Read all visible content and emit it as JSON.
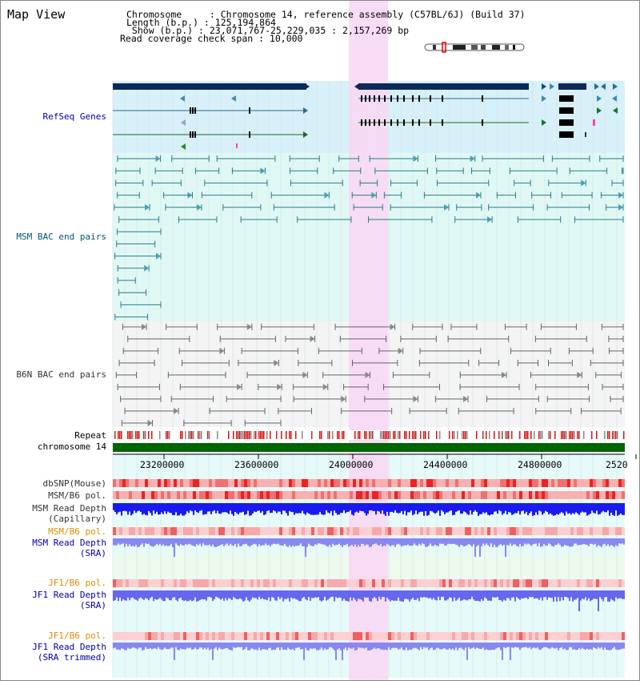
{
  "header": {
    "title": "Map View",
    "info_lines": [
      "Chromosome     : Chromosome 14, reference assembly (C57BL/6J) (Build 37)",
      "Length (b.p.) : 125,194,864",
      " Show (b.p.) : 23,071,767-25,229,035 : 2,157,269 bp",
      "Read coverage check span : 10,000"
    ]
  },
  "tracks": {
    "refseq_label": "RefSeq Genes",
    "msm_bac_label": "MSM BAC end pairs",
    "b6n_bac_label": "B6N BAC end pairs",
    "repeat_label": "Repeat",
    "chromosome_label": "chromosome 14",
    "dbsnp_label": "dbSNP(Mouse)",
    "msm_pol_label": "MSM/B6 pol.",
    "msm_depth_cap_label1": "MSM Read Depth",
    "msm_depth_cap_label2": "(Capillary)",
    "msm_pol_sra_label": "MSM/B6 pol.",
    "msm_depth_sra_label1": "MSM Read Depth",
    "msm_depth_sra_label2": "(SRA)",
    "jf1_pol_label": "JF1/B6 pol.",
    "jf1_depth_label1": "JF1 Read Depth",
    "jf1_depth_label2": "(SRA)",
    "jf1_pol_trim_label": "JF1/B6 pol.",
    "jf1_depth_trim_label1": "JF1 Read Depth",
    "jf1_depth_trim_label2": "(SRA trimmed)"
  },
  "axis": {
    "ticks": [
      "23200000",
      "23600000",
      "24000000",
      "24400000",
      "24800000",
      "2520"
    ]
  },
  "colors": {
    "highlight": "#f8d8f4",
    "refseq_bg": "#d8f0fa",
    "msm_bg": "#e0f8f4",
    "b6n_bg": "#f4f4f4",
    "gene_dark": "#0a2a5a",
    "chrom_green": "#006600",
    "depth_blue": "#1a1aee",
    "depth_light": "#8888ee"
  }
}
